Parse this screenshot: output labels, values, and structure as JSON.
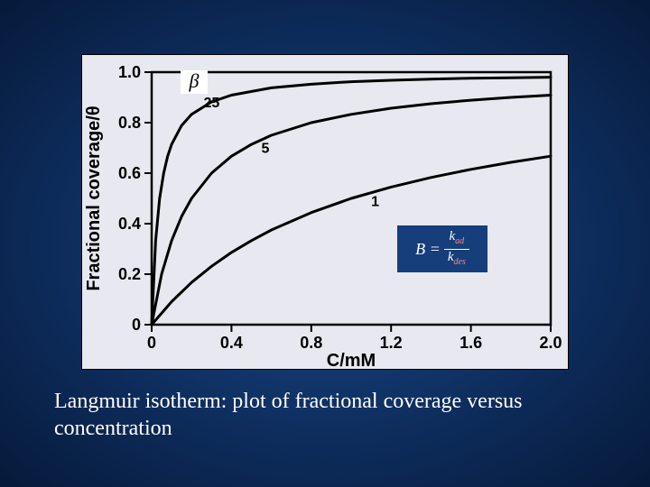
{
  "slide": {
    "background_gradient": [
      "#1a4b8a",
      "#0d2b5a",
      "#061a3a"
    ],
    "caption": "Langmuir isotherm: plot of fractional coverage versus concentration",
    "caption_fontsize": 24,
    "caption_color": "#ffffff"
  },
  "chart": {
    "type": "line",
    "panel_background": "#e8e8f0",
    "plot_background": "#e8e8f0",
    "axis_color": "#000000",
    "line_color": "#000000",
    "line_width": 3,
    "font_color": "#000000",
    "tick_fontsize": 18,
    "label_fontsize": 20,
    "x_label": "C/mM",
    "y_label": "Fractional coverage/θ",
    "xlim": [
      0,
      2.0
    ],
    "ylim": [
      0,
      1.0
    ],
    "x_ticks": [
      0,
      0.4,
      0.8,
      1.2,
      1.6,
      2.0
    ],
    "y_ticks": [
      0,
      0.2,
      0.4,
      0.6,
      0.8,
      1.0
    ],
    "x_tick_labels": [
      "0",
      "0.4",
      "0.8",
      "1.2",
      "1.6",
      "2.0"
    ],
    "y_tick_labels": [
      "0",
      "0.2",
      "0.4",
      "0.6",
      "0.8",
      "1.0"
    ],
    "series": [
      {
        "name": "beta=25",
        "label": "25",
        "label_pos": [
          0.26,
          0.86
        ],
        "beta": 25,
        "points": [
          [
            0,
            0
          ],
          [
            0.02,
            0.333
          ],
          [
            0.04,
            0.5
          ],
          [
            0.06,
            0.6
          ],
          [
            0.08,
            0.667
          ],
          [
            0.1,
            0.714
          ],
          [
            0.15,
            0.789
          ],
          [
            0.2,
            0.833
          ],
          [
            0.3,
            0.882
          ],
          [
            0.4,
            0.909
          ],
          [
            0.6,
            0.938
          ],
          [
            0.8,
            0.952
          ],
          [
            1.0,
            0.962
          ],
          [
            1.2,
            0.968
          ],
          [
            1.4,
            0.972
          ],
          [
            1.6,
            0.976
          ],
          [
            1.8,
            0.978
          ],
          [
            2.0,
            0.98
          ]
        ]
      },
      {
        "name": "beta=5",
        "label": "5",
        "label_pos": [
          0.55,
          0.68
        ],
        "beta": 5,
        "points": [
          [
            0,
            0
          ],
          [
            0.05,
            0.2
          ],
          [
            0.1,
            0.333
          ],
          [
            0.15,
            0.429
          ],
          [
            0.2,
            0.5
          ],
          [
            0.3,
            0.6
          ],
          [
            0.4,
            0.667
          ],
          [
            0.5,
            0.714
          ],
          [
            0.6,
            0.75
          ],
          [
            0.8,
            0.8
          ],
          [
            1.0,
            0.833
          ],
          [
            1.2,
            0.857
          ],
          [
            1.4,
            0.875
          ],
          [
            1.6,
            0.889
          ],
          [
            1.8,
            0.9
          ],
          [
            2.0,
            0.909
          ]
        ]
      },
      {
        "name": "beta=1",
        "label": "1",
        "label_pos": [
          1.1,
          0.47
        ],
        "beta": 1,
        "points": [
          [
            0,
            0
          ],
          [
            0.1,
            0.091
          ],
          [
            0.2,
            0.167
          ],
          [
            0.3,
            0.231
          ],
          [
            0.4,
            0.286
          ],
          [
            0.5,
            0.333
          ],
          [
            0.6,
            0.375
          ],
          [
            0.8,
            0.444
          ],
          [
            1.0,
            0.5
          ],
          [
            1.2,
            0.545
          ],
          [
            1.4,
            0.583
          ],
          [
            1.6,
            0.615
          ],
          [
            1.8,
            0.643
          ],
          [
            2.0,
            0.667
          ]
        ]
      }
    ],
    "beta_symbol": "β",
    "beta_box": {
      "background": "#ffffff",
      "color": "#000000",
      "fontsize": 22
    }
  },
  "equation": {
    "display": "B = k_ad / k_des",
    "left": "B",
    "eq": "=",
    "numerator_base": "k",
    "numerator_sub": "ad",
    "denominator_base": "k",
    "denominator_sub": "des",
    "box_background": "#153e7a",
    "text_color": "#ffffff",
    "sub_color": "#ff8a8a",
    "fontsize": 18
  }
}
